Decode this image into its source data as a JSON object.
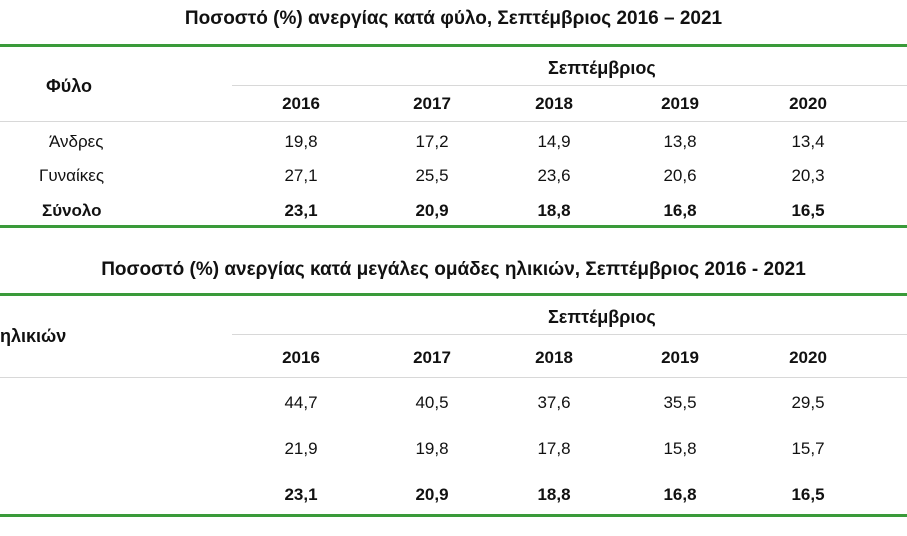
{
  "table1": {
    "title": "Ποσοστό (%) ανεργίας κατά φύλο, Σεπτέμβριος 2016 – 2021",
    "row_header": "Φύλο",
    "group_header": "Σεπτέμβριος",
    "years": [
      "2016",
      "2017",
      "2018",
      "2019",
      "2020"
    ],
    "rows": [
      {
        "label": "Άνδρες",
        "values": [
          "19,8",
          "17,2",
          "14,9",
          "13,8",
          "13,4"
        ]
      },
      {
        "label": "Γυναίκες",
        "values": [
          "27,1",
          "25,5",
          "23,6",
          "20,6",
          "20,3"
        ]
      },
      {
        "label": "Σύνολο",
        "values": [
          "23,1",
          "20,9",
          "18,8",
          "16,8",
          "16,5"
        ]
      }
    ]
  },
  "table2": {
    "title": "Ποσοστό (%) ανεργίας κατά μεγάλες ομάδες ηλικιών, Σεπτέμβριος 2016 - 2021",
    "row_header": "ηλικιών",
    "group_header": "Σεπτέμβριος",
    "years": [
      "2016",
      "2017",
      "2018",
      "2019",
      "2020"
    ],
    "rows": [
      {
        "values": [
          "44,7",
          "40,5",
          "37,6",
          "35,5",
          "29,5"
        ]
      },
      {
        "values": [
          "21,9",
          "19,8",
          "17,8",
          "15,8",
          "15,7"
        ]
      },
      {
        "values": [
          "23,1",
          "20,9",
          "18,8",
          "16,8",
          "16,5"
        ]
      }
    ]
  }
}
